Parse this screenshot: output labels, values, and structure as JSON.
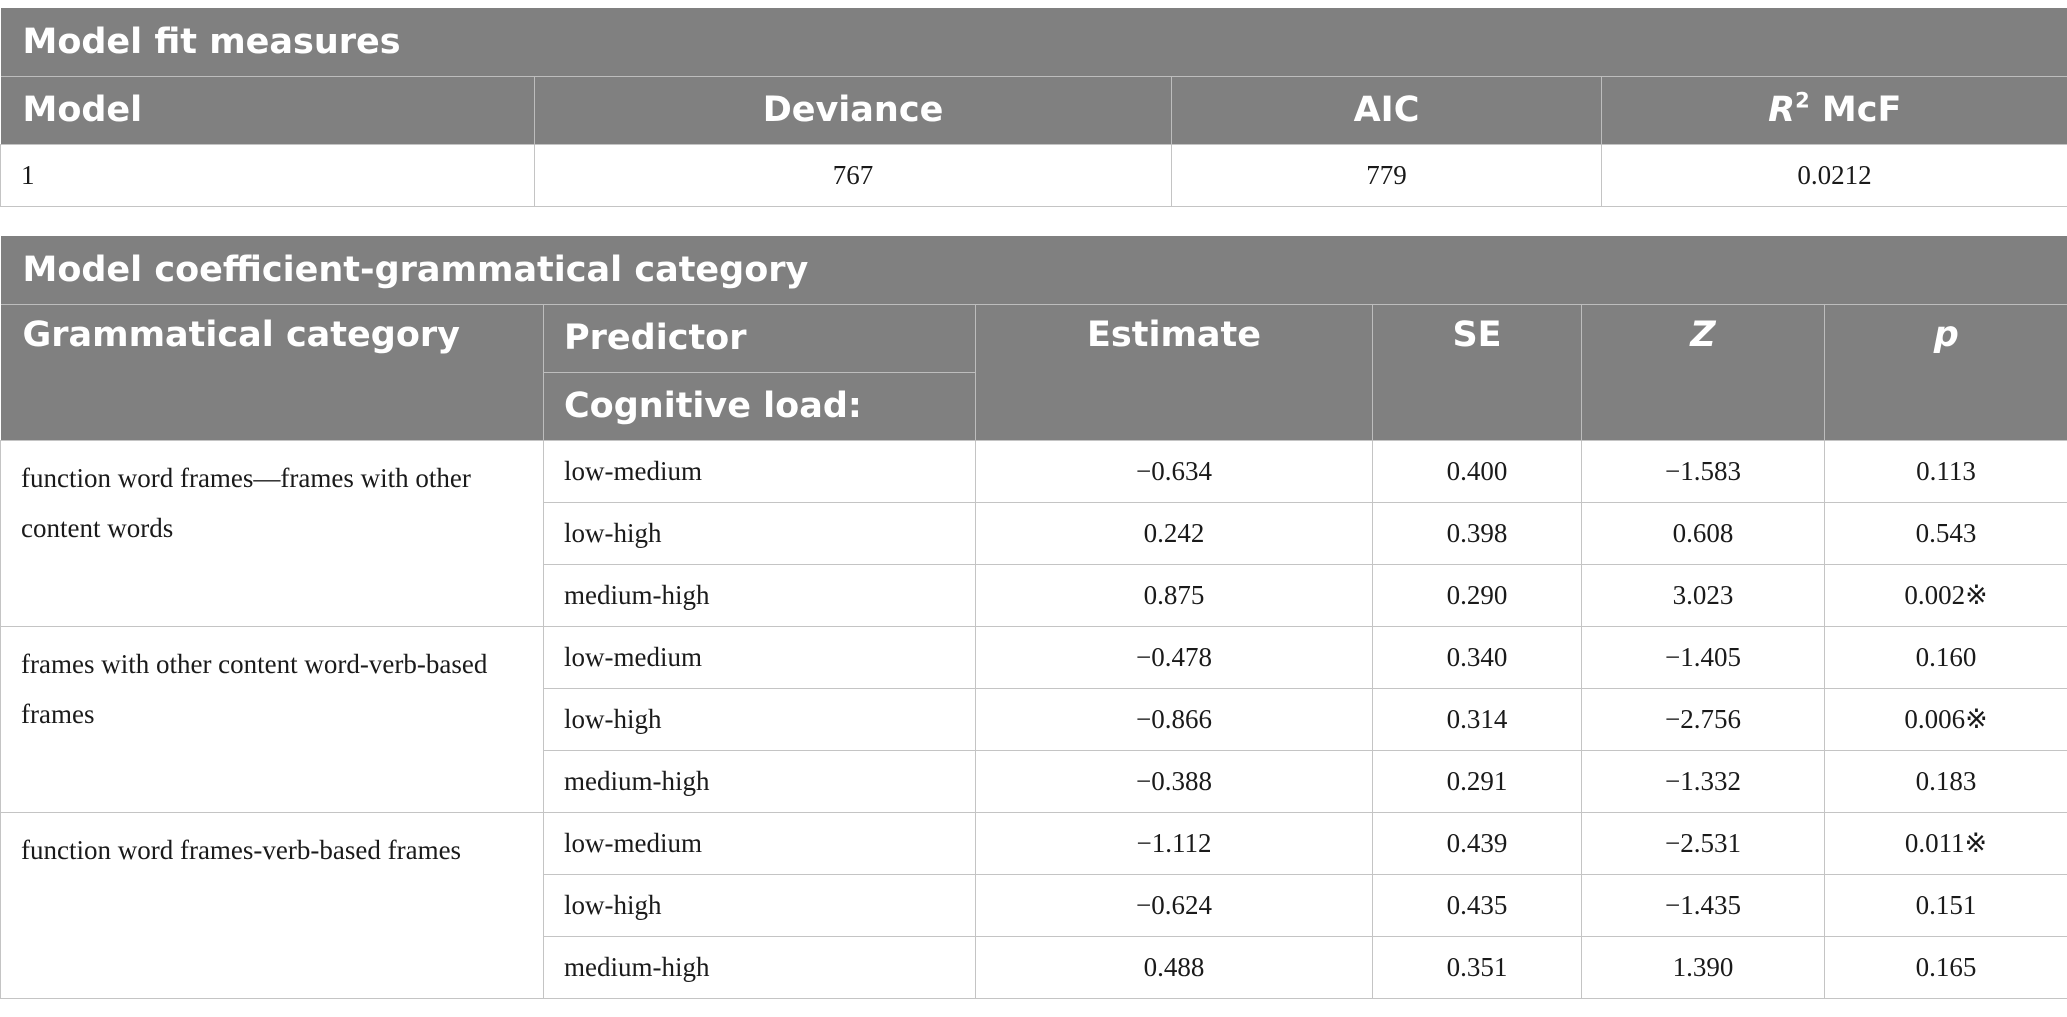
{
  "fit_table": {
    "title": "Model fit measures",
    "headers": {
      "model": "Model",
      "deviance": "Deviance",
      "aic": "AIC",
      "r2_sym": "R",
      "r2_sup": "2",
      "r2_rest": " McF"
    },
    "row": {
      "model": "1",
      "deviance": "767",
      "aic": "779",
      "r2": "0.0212"
    }
  },
  "coef_table": {
    "title": "Model coefficient-grammatical category",
    "headers": {
      "category": "Grammatical category",
      "predictor": "Predictor",
      "subpredictor": "Cognitive load:",
      "estimate": "Estimate",
      "se": "SE",
      "z": "Z",
      "p": "p"
    },
    "groups": [
      {
        "category": "function word frames—frames with other content words",
        "rows": [
          {
            "predictor": "low-medium",
            "estimate": "−0.634",
            "se": "0.400",
            "z": "−1.583",
            "p": "0.113"
          },
          {
            "predictor": "low-high",
            "estimate": "0.242",
            "se": "0.398",
            "z": "0.608",
            "p": "0.543"
          },
          {
            "predictor": "medium-high",
            "estimate": "0.875",
            "se": "0.290",
            "z": "3.023",
            "p": "0.002※"
          }
        ]
      },
      {
        "category": "frames with other content word-verb-based frames",
        "rows": [
          {
            "predictor": "low-medium",
            "estimate": "−0.478",
            "se": "0.340",
            "z": "−1.405",
            "p": "0.160"
          },
          {
            "predictor": "low-high",
            "estimate": "−0.866",
            "se": "0.314",
            "z": "−2.756",
            "p": "0.006※"
          },
          {
            "predictor": "medium-high",
            "estimate": "−0.388",
            "se": "0.291",
            "z": "−1.332",
            "p": "0.183"
          }
        ]
      },
      {
        "category": "function word frames-verb-based frames",
        "rows": [
          {
            "predictor": "low-medium",
            "estimate": "−1.112",
            "se": "0.439",
            "z": "−2.531",
            "p": "0.011※"
          },
          {
            "predictor": "low-high",
            "estimate": "−0.624",
            "se": "0.435",
            "z": "−1.435",
            "p": "0.151"
          },
          {
            "predictor": "medium-high",
            "estimate": "0.488",
            "se": "0.351",
            "z": "1.390",
            "p": "0.165"
          }
        ]
      }
    ]
  }
}
